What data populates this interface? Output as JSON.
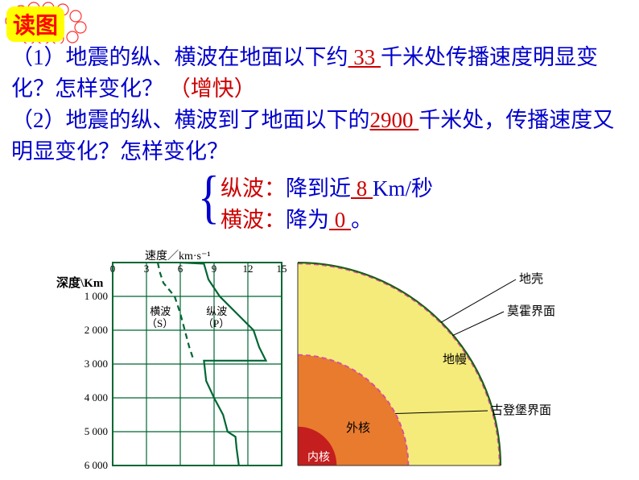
{
  "badge": "读图",
  "q1_prefix": "（1）地震的纵、横波在地面以下约",
  "q1_blank": "  33  ",
  "q1_suffix": "千米处传播速度明显变化？怎样变化？",
  "q1_answer": "（增快）",
  "q2_prefix": "（2）地震的纵、横波到了地面以下的",
  "q2_blank": "2900 ",
  "q2_suffix": "千米处，传播速度又明显变化？怎样变化？",
  "pwave_label": "纵波：",
  "pwave_prefix": "降到近",
  "pwave_blank": " 8 ",
  "pwave_suffix": " Km/秒",
  "swave_label": "横波：",
  "swave_prefix": "降为",
  "swave_blank": " 0 ",
  "swave_suffix": "。",
  "chart": {
    "x_title": "速度／km·s⁻¹",
    "y_title": "深度\\Km",
    "x_ticks": [
      "0",
      "3",
      "6",
      "9",
      "12",
      "15"
    ],
    "y_ticks": [
      "1 000",
      "2 000",
      "3 000",
      "4 000",
      "5 000",
      "6 000"
    ],
    "s_label": "横波\n（S）",
    "p_label": "纵波\n（P）",
    "grid_color": "#006633",
    "swave_color": "#006633",
    "pwave_color": "#006633",
    "swave_points": [
      [
        4.0,
        0
      ],
      [
        4.2,
        300
      ],
      [
        4.5,
        600
      ],
      [
        5.5,
        1000
      ],
      [
        6.0,
        1500
      ],
      [
        6.4,
        2000
      ],
      [
        6.8,
        2500
      ],
      [
        7.2,
        2900
      ]
    ],
    "pwave_points": [
      [
        6.0,
        0
      ],
      [
        8.1,
        33
      ],
      [
        8.5,
        500
      ],
      [
        9.5,
        1000
      ],
      [
        11.0,
        1500
      ],
      [
        12.5,
        2000
      ],
      [
        13.0,
        2500
      ],
      [
        13.6,
        2900
      ],
      [
        8.1,
        2900
      ],
      [
        8.3,
        3500
      ],
      [
        9.0,
        4000
      ],
      [
        9.8,
        4500
      ],
      [
        10.2,
        5000
      ],
      [
        10.9,
        5150
      ],
      [
        11.0,
        5500
      ],
      [
        11.2,
        6000
      ]
    ]
  },
  "earth": {
    "crust": "地壳",
    "moho": "莫霍界面",
    "mantle": "地幔",
    "gutenberg": "古登堡界面",
    "outer_core": "外核",
    "inner_core": "内核",
    "crust_color": "#6bb34a",
    "mantle_color": "#f5eb7a",
    "outer_core_color": "#e87b2e",
    "inner_core_color": "#c41e1e",
    "moho_color": "#d94f9e",
    "gutenberg_color": "#d94f9e"
  }
}
